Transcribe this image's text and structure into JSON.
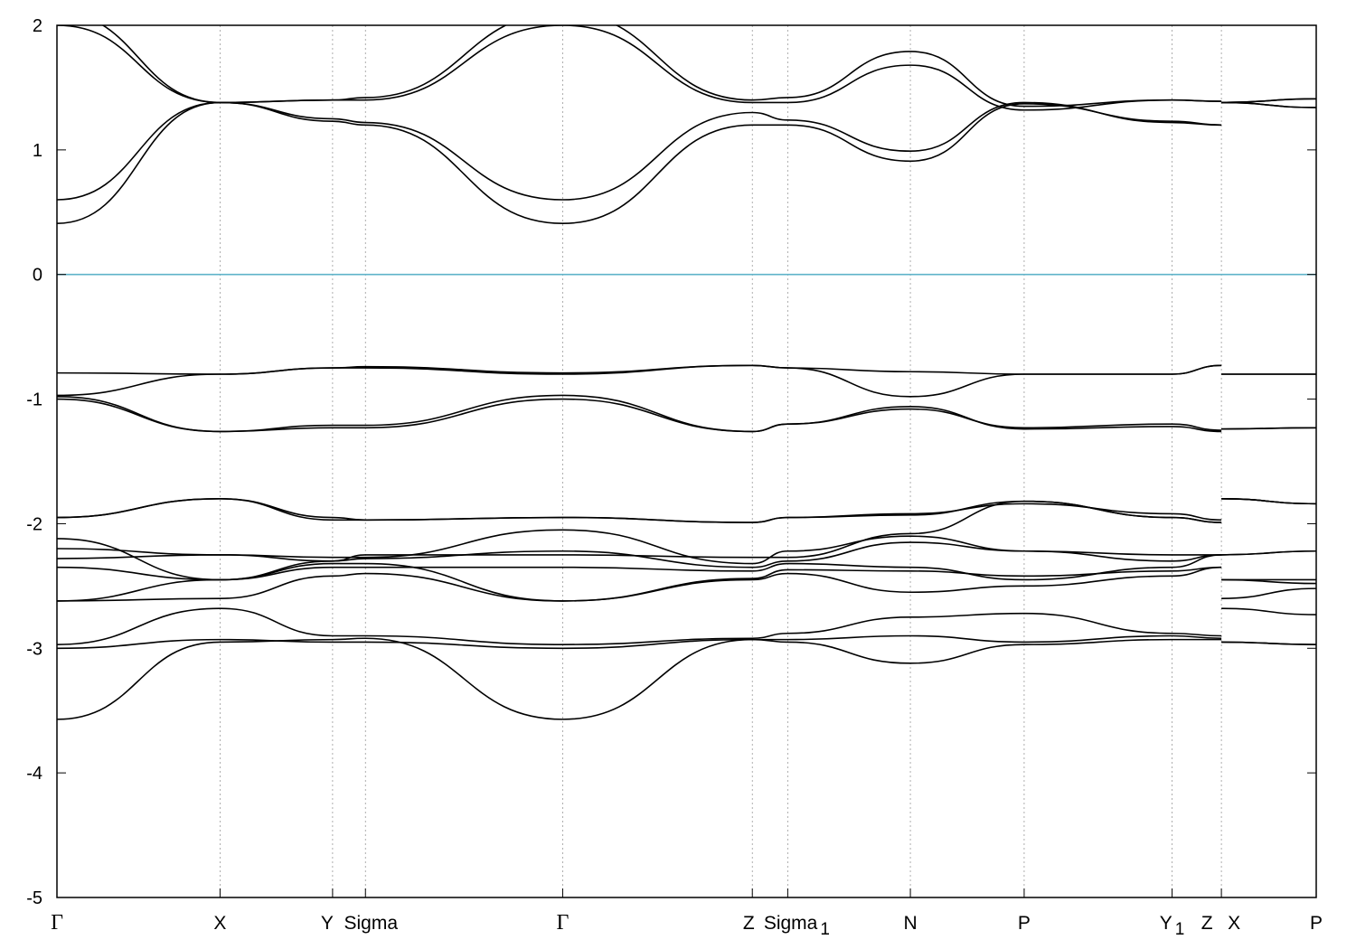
{
  "chart_data": {
    "type": "line",
    "title": "",
    "xlabel": "",
    "ylabel": "",
    "ylim": [
      -5,
      2
    ],
    "yticks": [
      -5,
      -4,
      -3,
      -2,
      -1,
      0,
      1,
      2
    ],
    "grid": "vertical dotted lines at high-symmetry points",
    "fermi_level": {
      "value": 0,
      "color": "#5fb3c9"
    },
    "band_color": "#000000",
    "kpoints": [
      {
        "label": "Γ",
        "sub": "",
        "x": 0.0
      },
      {
        "label": "X",
        "sub": "",
        "x": 1.29
      },
      {
        "label": "Y",
        "sub": "",
        "x": 2.18
      },
      {
        "label": "Sigma",
        "sub": "",
        "x": 2.44
      },
      {
        "label": "Γ",
        "sub": "",
        "x": 4.0
      },
      {
        "label": "Z",
        "sub": "",
        "x": 5.5
      },
      {
        "label": "Sigma",
        "sub": "1",
        "x": 5.78
      },
      {
        "label": "N",
        "sub": "",
        "x": 6.75
      },
      {
        "label": "P",
        "sub": "",
        "x": 7.65
      },
      {
        "label": "Y",
        "sub": "1",
        "x": 8.82
      },
      {
        "label": "Z",
        "sub": "",
        "x": 9.21
      },
      {
        "label": "X",
        "sub": "",
        "x": 9.21
      },
      {
        "label": "P",
        "sub": "",
        "x": 9.96
      }
    ],
    "xlim": [
      0,
      9.96
    ],
    "segment_breaks": [
      9.21
    ],
    "series": [
      {
        "values": [
          -3.57,
          -2.95,
          -2.93,
          -2.92,
          -3.57,
          -2.93,
          -2.95,
          -3.12,
          -2.97,
          -2.93,
          -2.93,
          -2.95,
          -2.97
        ]
      },
      {
        "values": [
          -3.0,
          -2.93,
          -2.95,
          -2.95,
          -3.0,
          -2.93,
          -2.93,
          -2.9,
          -2.95,
          -2.9,
          -2.92,
          -2.95,
          -2.97
        ]
      },
      {
        "values": [
          -2.97,
          -2.68,
          -2.9,
          -2.9,
          -2.97,
          -2.92,
          -2.88,
          -2.75,
          -2.72,
          -2.88,
          -2.9,
          -2.68,
          -2.73
        ]
      },
      {
        "values": [
          -2.62,
          -2.6,
          -2.42,
          -2.4,
          -2.62,
          -2.45,
          -2.4,
          -2.55,
          -2.5,
          -2.42,
          -2.35,
          -2.6,
          -2.52
        ]
      },
      {
        "values": [
          -2.62,
          -2.45,
          -2.32,
          -2.32,
          -2.62,
          -2.44,
          -2.37,
          -2.38,
          -2.42,
          -2.38,
          -2.35,
          -2.45,
          -2.48
        ]
      },
      {
        "values": [
          -2.35,
          -2.45,
          -2.35,
          -2.35,
          -2.35,
          -2.38,
          -2.32,
          -2.35,
          -2.45,
          -2.35,
          -2.25,
          -2.45,
          -2.45
        ]
      },
      {
        "values": [
          -2.28,
          -2.25,
          -2.3,
          -2.28,
          -2.22,
          -2.35,
          -2.3,
          -2.15,
          -2.22,
          -2.3,
          -2.25,
          -2.25,
          -2.22
        ]
      },
      {
        "values": [
          -2.2,
          -2.25,
          -2.27,
          -2.27,
          -2.05,
          -2.32,
          -2.22,
          -2.1,
          -2.22,
          -2.25,
          -2.25,
          -2.25,
          -2.22
        ]
      },
      {
        "values": [
          -2.12,
          -2.45,
          -2.3,
          -2.25,
          -2.25,
          -2.27,
          -2.27,
          -2.08,
          -1.82,
          -1.95,
          -1.99,
          -1.8,
          -1.84
        ]
      },
      {
        "values": [
          -1.95,
          -1.8,
          -1.95,
          -1.97,
          -1.95,
          -1.99,
          -1.95,
          -1.93,
          -1.82,
          -1.95,
          -1.99,
          -1.8,
          -1.84
        ]
      },
      {
        "values": [
          -1.95,
          -1.8,
          -1.97,
          -1.97,
          -1.95,
          -1.99,
          -1.95,
          -1.92,
          -1.84,
          -1.92,
          -1.97,
          -1.8,
          -1.84
        ]
      },
      {
        "values": [
          -1.0,
          -1.26,
          -1.23,
          -1.23,
          -1.0,
          -1.26,
          -1.2,
          -1.06,
          -1.24,
          -1.22,
          -1.26,
          -1.24,
          -1.23
        ]
      },
      {
        "values": [
          -0.98,
          -1.26,
          -1.21,
          -1.21,
          -0.97,
          -1.26,
          -1.2,
          -1.08,
          -1.23,
          -1.2,
          -1.25,
          -1.24,
          -1.23
        ]
      },
      {
        "values": [
          -0.97,
          -0.8,
          -0.75,
          -0.74,
          -0.79,
          -0.73,
          -0.75,
          -0.98,
          -0.8,
          -0.8,
          -0.73,
          -0.8,
          -0.8
        ]
      },
      {
        "values": [
          -0.79,
          -0.8,
          -0.75,
          -0.75,
          -0.8,
          -0.73,
          -0.75,
          -0.78,
          -0.8,
          -0.8,
          -0.73,
          -0.8,
          -0.8
        ]
      },
      {
        "values": [
          0.41,
          1.38,
          1.23,
          1.2,
          0.41,
          1.2,
          1.2,
          0.91,
          1.37,
          1.23,
          1.2,
          1.38,
          1.34
        ]
      },
      {
        "values": [
          0.6,
          1.38,
          1.25,
          1.22,
          0.6,
          1.3,
          1.24,
          0.99,
          1.38,
          1.22,
          1.2,
          1.38,
          1.34
        ]
      },
      {
        "values": [
          2.0,
          1.38,
          1.4,
          1.4,
          2.0,
          1.38,
          1.38,
          1.68,
          1.32,
          1.4,
          1.39,
          1.38,
          1.41
        ]
      },
      {
        "values": [
          2.1,
          1.38,
          1.4,
          1.42,
          2.1,
          1.4,
          1.42,
          1.79,
          1.35,
          1.4,
          1.39,
          1.38,
          1.41
        ]
      }
    ]
  }
}
